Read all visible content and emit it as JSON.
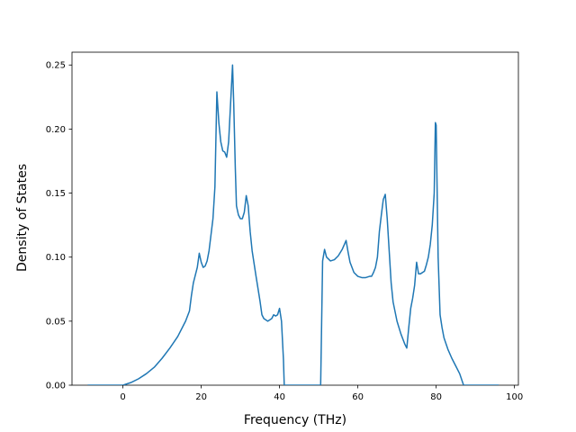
{
  "chart_data": {
    "type": "line",
    "title": "",
    "xlabel": "Frequency (THz)",
    "ylabel": "Density of States",
    "xlim": [
      -13,
      101
    ],
    "ylim": [
      0,
      0.26
    ],
    "x_ticks": [
      0,
      20,
      40,
      60,
      80,
      100
    ],
    "x_tick_labels": [
      "0",
      "20",
      "40",
      "60",
      "80",
      "100"
    ],
    "y_ticks": [
      0.0,
      0.05,
      0.1,
      0.15,
      0.2,
      0.25
    ],
    "y_tick_labels": [
      "0.00",
      "0.05",
      "0.10",
      "0.15",
      "0.20",
      "0.25"
    ],
    "grid": false,
    "legend": "none",
    "series": [
      {
        "color": "#1f77b4",
        "x": [
          -9,
          -5,
          0,
          2,
          4,
          6,
          8,
          10,
          12,
          14,
          16,
          17,
          17.5,
          18,
          19,
          19.5,
          20,
          20.5,
          21,
          21.5,
          22,
          23,
          23.5,
          24,
          24.5,
          25,
          25.5,
          26,
          26.5,
          27,
          27.5,
          28,
          28.3,
          28.7,
          29,
          29.5,
          30,
          30.5,
          31,
          31.5,
          32,
          32.5,
          33,
          34,
          35,
          35.5,
          36,
          37,
          38,
          38.5,
          39,
          39.5,
          40,
          40.5,
          41,
          41.2,
          41.5,
          45,
          50.5,
          51,
          51.5,
          52,
          53,
          54,
          55,
          56,
          57,
          57.5,
          58,
          59,
          60,
          61,
          62,
          63,
          63.5,
          64,
          64.5,
          65,
          65.5,
          66,
          66.5,
          67,
          67.5,
          68,
          68.5,
          69,
          70,
          71,
          72,
          72.5,
          73,
          73.5,
          74,
          74.5,
          75,
          75.5,
          76,
          77,
          77.5,
          78,
          78.5,
          79,
          79.5,
          79.8,
          80,
          80.5,
          81,
          81.5,
          82,
          83,
          84,
          85,
          86,
          87,
          88,
          90,
          96
        ],
        "y": [
          0,
          0,
          0,
          0.002,
          0.005,
          0.009,
          0.014,
          0.021,
          0.029,
          0.038,
          0.05,
          0.058,
          0.07,
          0.08,
          0.092,
          0.103,
          0.096,
          0.092,
          0.093,
          0.097,
          0.105,
          0.13,
          0.155,
          0.229,
          0.205,
          0.19,
          0.183,
          0.182,
          0.178,
          0.19,
          0.22,
          0.25,
          0.22,
          0.17,
          0.14,
          0.133,
          0.13,
          0.13,
          0.135,
          0.148,
          0.14,
          0.12,
          0.105,
          0.085,
          0.066,
          0.055,
          0.052,
          0.05,
          0.052,
          0.055,
          0.054,
          0.055,
          0.06,
          0.05,
          0.02,
          0,
          0,
          0,
          0,
          0.097,
          0.106,
          0.1,
          0.097,
          0.098,
          0.101,
          0.106,
          0.113,
          0.104,
          0.096,
          0.088,
          0.085,
          0.084,
          0.084,
          0.085,
          0.085,
          0.088,
          0.092,
          0.1,
          0.12,
          0.133,
          0.145,
          0.149,
          0.13,
          0.105,
          0.08,
          0.065,
          0.05,
          0.04,
          0.032,
          0.029,
          0.045,
          0.06,
          0.068,
          0.078,
          0.096,
          0.087,
          0.087,
          0.089,
          0.094,
          0.1,
          0.11,
          0.125,
          0.15,
          0.205,
          0.203,
          0.1,
          0.055,
          0.045,
          0.037,
          0.028,
          0.021,
          0.015,
          0.009,
          0.0,
          0,
          0,
          0
        ]
      }
    ]
  }
}
